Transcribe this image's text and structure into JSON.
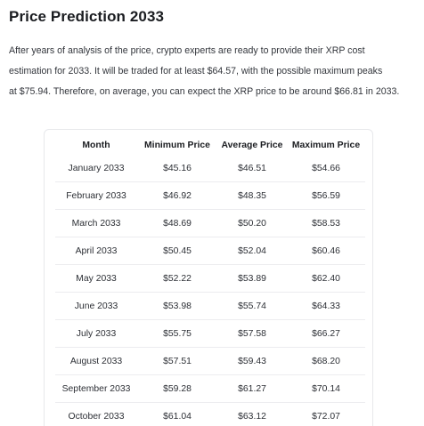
{
  "heading": "Price Prediction 2033",
  "intro_lines": [
    "After years of analysis of the price, crypto experts are ready to provide their XRP cost",
    "estimation for 2033. It will be traded for at least $64.57, with the possible maximum peaks",
    "at $75.94. Therefore, on average, you can expect the XRP price to be around $66.81 in 2033."
  ],
  "table": {
    "headers": [
      "Month",
      "Minimum Price",
      "Average Price",
      "Maximum Price"
    ],
    "rows": [
      [
        "January 2033",
        "$45.16",
        "$46.51",
        "$54.66"
      ],
      [
        "February 2033",
        "$46.92",
        "$48.35",
        "$56.59"
      ],
      [
        "March 2033",
        "$48.69",
        "$50.20",
        "$58.53"
      ],
      [
        "April 2033",
        "$50.45",
        "$52.04",
        "$60.46"
      ],
      [
        "May 2033",
        "$52.22",
        "$53.89",
        "$62.40"
      ],
      [
        "June 2033",
        "$53.98",
        "$55.74",
        "$64.33"
      ],
      [
        "July 2033",
        "$55.75",
        "$57.58",
        "$66.27"
      ],
      [
        "August 2033",
        "$57.51",
        "$59.43",
        "$68.20"
      ],
      [
        "September 2033",
        "$59.28",
        "$61.27",
        "$70.14"
      ],
      [
        "October 2033",
        "$61.04",
        "$63.12",
        "$72.07"
      ]
    ]
  }
}
